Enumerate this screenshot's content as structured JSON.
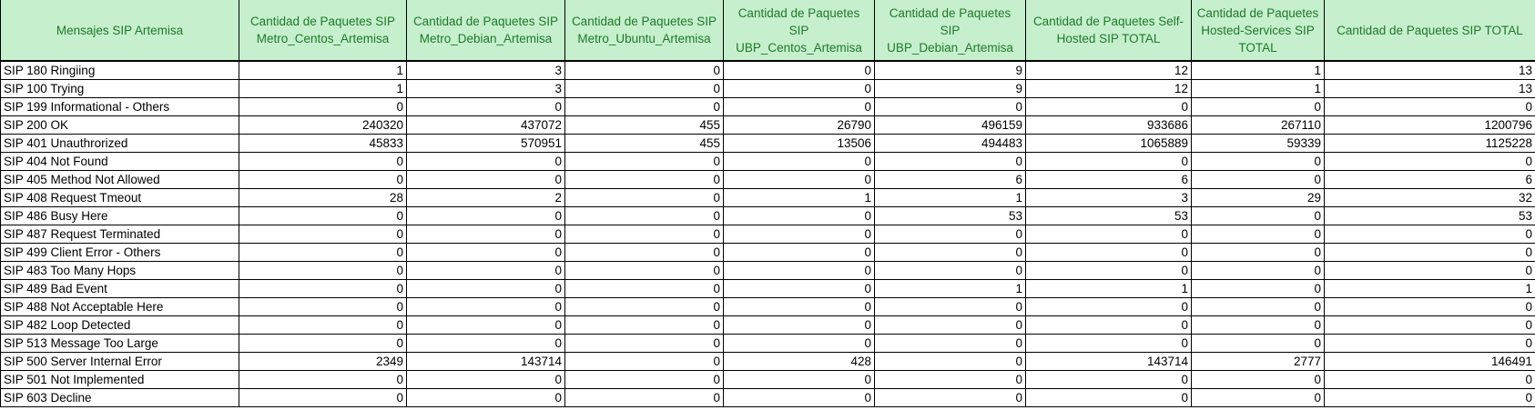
{
  "table": {
    "headers": [
      "Mensajes SIP Artemisa",
      "Cantidad de Paquetes SIP Metro_Centos_Artemisa",
      "Cantidad de Paquetes SIP Metro_Debian_Artemisa",
      "Cantidad de Paquetes SIP Metro_Ubuntu_Artemisa",
      "Cantidad de Paquetes SIP UBP_Centos_Artemisa",
      "Cantidad de Paquetes SIP UBP_Debian_Artemisa",
      "Cantidad de Paquetes Self-Hosted SIP TOTAL",
      "Cantidad de Paquetes Hosted-Services SIP TOTAL",
      "Cantidad de Paquetes SIP TOTAL"
    ],
    "rows": [
      [
        "SIP 180 Ringiing",
        "1",
        "3",
        "0",
        "0",
        "9",
        "12",
        "1",
        "13"
      ],
      [
        "SIP 100 Trying",
        "1",
        "3",
        "0",
        "0",
        "9",
        "12",
        "1",
        "13"
      ],
      [
        "SIP 199 Informational - Others",
        "0",
        "0",
        "0",
        "0",
        "0",
        "0",
        "0",
        "0"
      ],
      [
        "SIP 200 OK",
        "240320",
        "437072",
        "455",
        "26790",
        "496159",
        "933686",
        "267110",
        "1200796"
      ],
      [
        "SIP 401 Unauthrorized",
        "45833",
        "570951",
        "455",
        "13506",
        "494483",
        "1065889",
        "59339",
        "1125228"
      ],
      [
        "SIP 404 Not Found",
        "0",
        "0",
        "0",
        "0",
        "0",
        "0",
        "0",
        "0"
      ],
      [
        "SIP 405 Method Not Allowed",
        "0",
        "0",
        "0",
        "0",
        "6",
        "6",
        "0",
        "6"
      ],
      [
        "SIP 408 Request Tmeout",
        "28",
        "2",
        "0",
        "1",
        "1",
        "3",
        "29",
        "32"
      ],
      [
        "SIP 486 Busy Here",
        "0",
        "0",
        "0",
        "0",
        "53",
        "53",
        "0",
        "53"
      ],
      [
        "SIP 487 Request Terminated",
        "0",
        "0",
        "0",
        "0",
        "0",
        "0",
        "0",
        "0"
      ],
      [
        "SIP 499 Client Error - Others",
        "0",
        "0",
        "0",
        "0",
        "0",
        "0",
        "0",
        "0"
      ],
      [
        "SIP 483 Too Many Hops",
        "0",
        "0",
        "0",
        "0",
        "0",
        "0",
        "0",
        "0"
      ],
      [
        "SIP 489 Bad Event",
        "0",
        "0",
        "0",
        "0",
        "1",
        "1",
        "0",
        "1"
      ],
      [
        "SIP 488 Not Acceptable Here",
        "0",
        "0",
        "0",
        "0",
        "0",
        "0",
        "0",
        "0"
      ],
      [
        "SIP 482 Loop Detected",
        "0",
        "0",
        "0",
        "0",
        "0",
        "0",
        "0",
        "0"
      ],
      [
        "SIP 513 Message Too Large",
        "0",
        "0",
        "0",
        "0",
        "0",
        "0",
        "0",
        "0"
      ],
      [
        "SIP 500 Server Internal Error",
        "2349",
        "143714",
        "0",
        "428",
        "0",
        "143714",
        "2777",
        "146491"
      ],
      [
        "SIP 501 Not Implemented",
        "0",
        "0",
        "0",
        "0",
        "0",
        "0",
        "0",
        "0"
      ],
      [
        "SIP 603 Decline",
        "0",
        "0",
        "0",
        "0",
        "0",
        "0",
        "0",
        "0"
      ]
    ]
  },
  "colors": {
    "header_fill": "#c6efce",
    "header_text": "#1f7a28",
    "grid": "#000000"
  }
}
